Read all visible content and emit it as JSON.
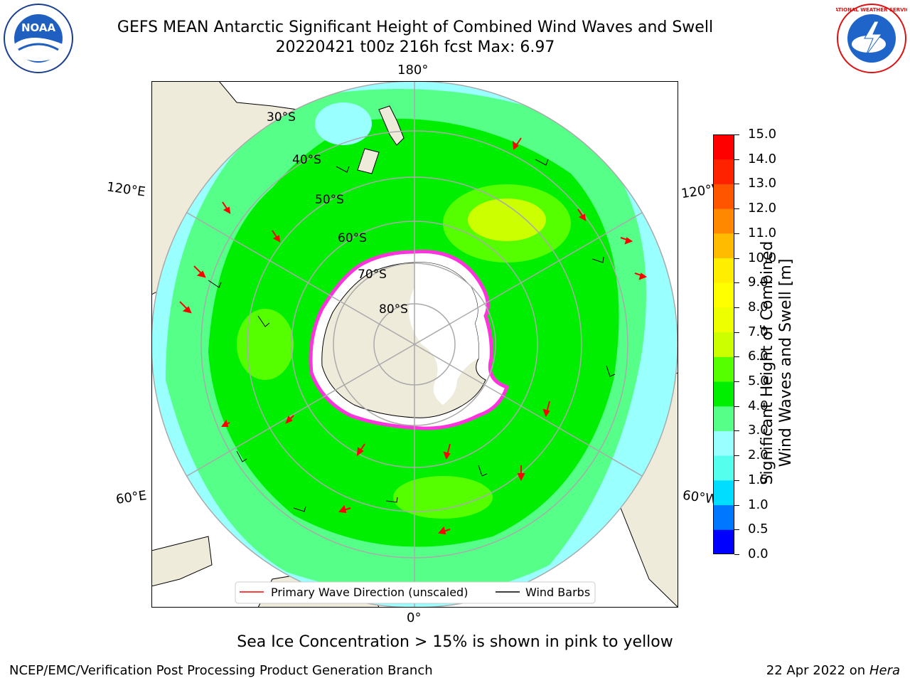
{
  "header": {
    "title_line1": "GEFS MEAN Antarctic Significant Height of Combined Wind Waves and Swell",
    "title_line2": "20220421 t00z 216h fcst   Max: 6.97",
    "logos": {
      "left": "noaa-logo",
      "right": "nws-logo",
      "noaa_text": "NOAA",
      "nws_text": "NATIONAL WEATHER SERVICE"
    }
  },
  "map": {
    "projection": "south-polar-stereographic",
    "longitude_labels": [
      "180°",
      "120°E",
      "120°W",
      "60°E",
      "60°W",
      "0°"
    ],
    "latitude_labels": [
      "30°S",
      "40°S",
      "50°S",
      "60°S",
      "70°S",
      "80°S"
    ],
    "legend": {
      "primary_wave": "Primary Wave Direction (unscaled)",
      "wind_barbs": "Wind Barbs"
    },
    "colors": {
      "land": "#efebdb",
      "ice": "#ffffff",
      "arrows": "#ff0000",
      "barbs": "#000000",
      "ice_edge": "#ff33dd"
    }
  },
  "colorbar": {
    "label_line1": "Significant Height of Combined",
    "label_line2": "Wind Waves and Swell [m]",
    "ticks": [
      "0.0",
      "0.5",
      "1.0",
      "1.5",
      "2.0",
      "3.0",
      "4.0",
      "5.0",
      "6.0",
      "7.0",
      "8.0",
      "9.0",
      "10.0",
      "11.0",
      "12.0",
      "13.0",
      "14.0",
      "15.0"
    ],
    "colors": [
      "#0000ff",
      "#0077ff",
      "#00ddff",
      "#55ffee",
      "#99ffff",
      "#55ff88",
      "#00ee00",
      "#55ff00",
      "#ccff00",
      "#eeff00",
      "#ffff00",
      "#ffee00",
      "#ffbb00",
      "#ff8800",
      "#ff5500",
      "#ff2200",
      "#ff0000"
    ]
  },
  "notes": {
    "ice": "Sea Ice Concentration > 15% is shown in pink to yellow",
    "footer_left": "NCEP/EMC/Verification Post Processing Product Generation Branch",
    "footer_date": "22 Apr 2022 on ",
    "footer_host": "Hera"
  }
}
